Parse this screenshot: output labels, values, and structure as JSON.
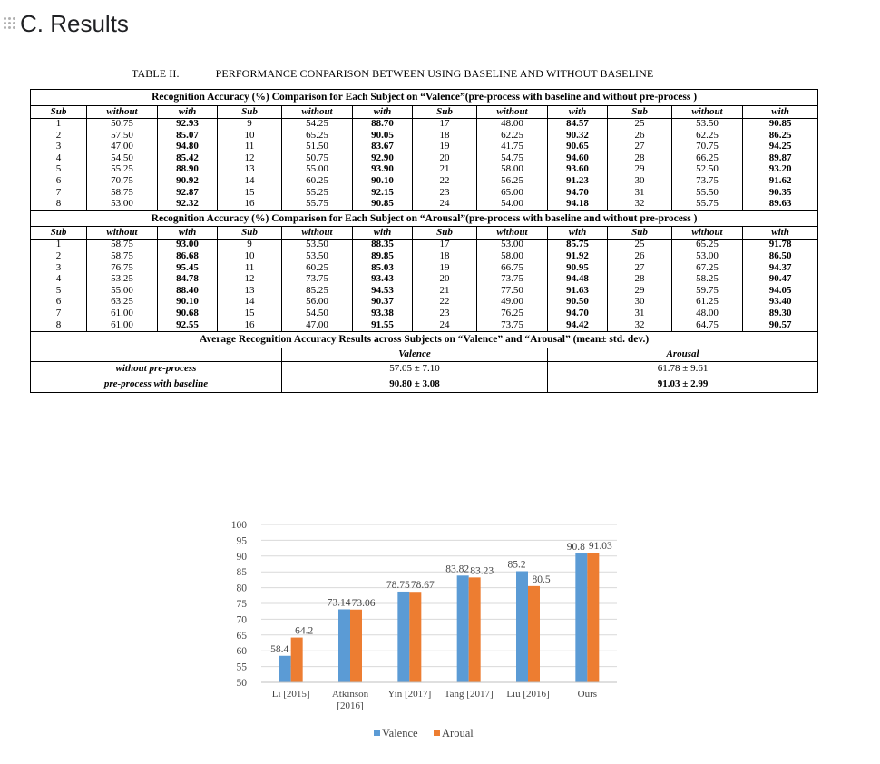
{
  "section": {
    "title": "C. Results"
  },
  "table": {
    "caption_id": "TABLE II.",
    "caption_text": "PERFORMANCE CONPARISON BETWEEN USING BASELINE AND WITHOUT BASELINE",
    "col_headers": [
      "Sub",
      "without",
      "with",
      "Sub",
      "without",
      "with",
      "Sub",
      "without",
      "with",
      "Sub",
      "without",
      "with"
    ],
    "valence": {
      "banner": "Recognition Accuracy (%) Comparison for Each Subject on “Valence”(pre-process with baseline and without pre-process )",
      "rows": [
        [
          "1",
          "50.75",
          "92.93",
          "9",
          "54.25",
          "88.70",
          "17",
          "48.00",
          "84.57",
          "25",
          "53.50",
          "90.85"
        ],
        [
          "2",
          "57.50",
          "85.07",
          "10",
          "65.25",
          "90.05",
          "18",
          "62.25",
          "90.32",
          "26",
          "62.25",
          "86.25"
        ],
        [
          "3",
          "47.00",
          "94.80",
          "11",
          "51.50",
          "83.67",
          "19",
          "41.75",
          "90.65",
          "27",
          "70.75",
          "94.25"
        ],
        [
          "4",
          "54.50",
          "85.42",
          "12",
          "50.75",
          "92.90",
          "20",
          "54.75",
          "94.60",
          "28",
          "66.25",
          "89.87"
        ],
        [
          "5",
          "55.25",
          "88.90",
          "13",
          "55.00",
          "93.90",
          "21",
          "58.00",
          "93.60",
          "29",
          "52.50",
          "93.20"
        ],
        [
          "6",
          "70.75",
          "90.92",
          "14",
          "60.25",
          "90.10",
          "22",
          "56.25",
          "91.23",
          "30",
          "73.75",
          "91.62"
        ],
        [
          "7",
          "58.75",
          "92.87",
          "15",
          "55.25",
          "92.15",
          "23",
          "65.00",
          "94.70",
          "31",
          "55.50",
          "90.35"
        ],
        [
          "8",
          "53.00",
          "92.32",
          "16",
          "55.75",
          "90.85",
          "24",
          "54.00",
          "94.18",
          "32",
          "55.75",
          "89.63"
        ]
      ]
    },
    "arousal": {
      "banner": "Recognition Accuracy (%) Comparison for Each Subject on “Arousal”(pre-process with baseline and without pre-process )",
      "rows": [
        [
          "1",
          "58.75",
          "93.00",
          "9",
          "53.50",
          "88.35",
          "17",
          "53.00",
          "85.75",
          "25",
          "65.25",
          "91.78"
        ],
        [
          "2",
          "58.75",
          "86.68",
          "10",
          "53.50",
          "89.85",
          "18",
          "58.00",
          "91.92",
          "26",
          "53.00",
          "86.50"
        ],
        [
          "3",
          "76.75",
          "95.45",
          "11",
          "60.25",
          "85.03",
          "19",
          "66.75",
          "90.95",
          "27",
          "67.25",
          "94.37"
        ],
        [
          "4",
          "53.25",
          "84.78",
          "12",
          "73.75",
          "93.43",
          "20",
          "73.75",
          "94.48",
          "28",
          "58.25",
          "90.47"
        ],
        [
          "5",
          "55.00",
          "88.40",
          "13",
          "85.25",
          "94.53",
          "21",
          "77.50",
          "91.63",
          "29",
          "59.75",
          "94.05"
        ],
        [
          "6",
          "63.25",
          "90.10",
          "14",
          "56.00",
          "90.37",
          "22",
          "49.00",
          "90.50",
          "30",
          "61.25",
          "93.40"
        ],
        [
          "7",
          "61.00",
          "90.68",
          "15",
          "54.50",
          "93.38",
          "23",
          "76.25",
          "94.70",
          "31",
          "48.00",
          "89.30"
        ],
        [
          "8",
          "61.00",
          "92.55",
          "16",
          "47.00",
          "91.55",
          "24",
          "73.75",
          "94.42",
          "32",
          "64.75",
          "90.57"
        ]
      ]
    },
    "average": {
      "banner": "Average Recognition Accuracy Results across Subjects on “Valence” and “Arousal” (mean± std. dev.)",
      "col_valence": "Valence",
      "col_arousal": "Arousal",
      "row1_label": "without pre-process",
      "row1_valence": "57.05 ± 7.10",
      "row1_arousal": "61.78 ± 9.61",
      "row2_label": "pre-process with baseline",
      "row2_valence": "90.80 ± 3.08",
      "row2_arousal": "91.03 ± 2.99"
    }
  },
  "chart_data": {
    "type": "bar",
    "categories": [
      "Li [2015]",
      "Atkinson [2016]",
      "Yin [2017]",
      "Tang [2017]",
      "Liu [2016]",
      "Ours"
    ],
    "category_lines": [
      [
        "Li [2015]"
      ],
      [
        "Atkinson",
        "[2016]"
      ],
      [
        "Yin [2017]"
      ],
      [
        "Tang [2017]"
      ],
      [
        "Liu [2016]"
      ],
      [
        "Ours"
      ]
    ],
    "series": [
      {
        "name": "Valence",
        "values": [
          58.4,
          73.14,
          78.75,
          83.82,
          85.2,
          90.8
        ],
        "labels": [
          "58.4",
          "73.14",
          "78.75",
          "83.82",
          "85.2",
          "90.8"
        ],
        "color": "#5b9bd5"
      },
      {
        "name": "Aroual",
        "values": [
          64.2,
          73.06,
          78.67,
          83.23,
          80.5,
          91.03
        ],
        "labels": [
          "64.2",
          "73.06",
          "78.67",
          "83.23",
          "80.5",
          "91.03"
        ],
        "color": "#ed7d31"
      }
    ],
    "yticks": [
      "50",
      "55",
      "60",
      "65",
      "70",
      "75",
      "80",
      "85",
      "90",
      "95",
      "100"
    ],
    "ylim": [
      50,
      100
    ],
    "grid": true,
    "legend_position": "bottom"
  }
}
